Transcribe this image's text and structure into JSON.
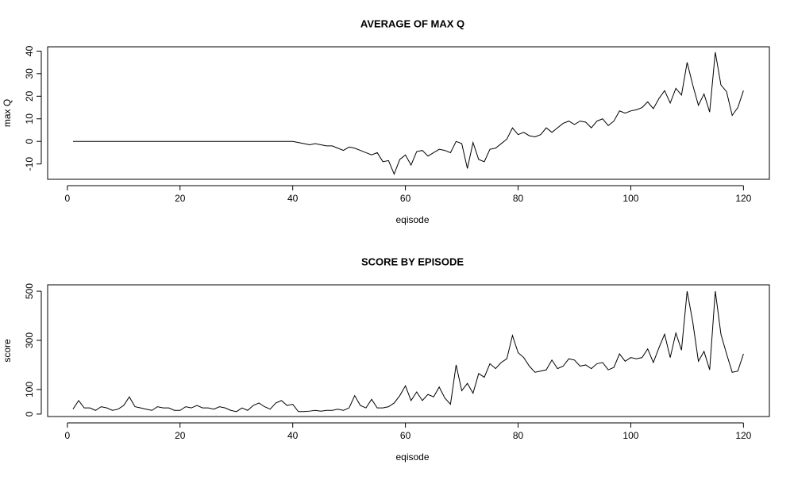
{
  "chart_data": [
    {
      "type": "line",
      "title": "AVERAGE OF MAX Q",
      "x_label": "eqisode",
      "y_label": "max Q",
      "x": [
        1,
        2,
        3,
        4,
        5,
        6,
        7,
        8,
        9,
        10,
        11,
        12,
        13,
        14,
        15,
        16,
        17,
        18,
        19,
        20,
        21,
        22,
        23,
        24,
        25,
        26,
        27,
        28,
        29,
        30,
        31,
        32,
        33,
        34,
        35,
        36,
        37,
        38,
        39,
        40,
        41,
        42,
        43,
        44,
        45,
        46,
        47,
        48,
        49,
        50,
        51,
        52,
        53,
        54,
        55,
        56,
        57,
        58,
        59,
        60,
        61,
        62,
        63,
        64,
        65,
        66,
        67,
        68,
        69,
        70,
        71,
        72,
        73,
        74,
        75,
        76,
        77,
        78,
        79,
        80,
        81,
        82,
        83,
        84,
        85,
        86,
        87,
        88,
        89,
        90,
        91,
        92,
        93,
        94,
        95,
        96,
        97,
        98,
        99,
        100,
        101,
        102,
        103,
        104,
        105,
        106,
        107,
        108,
        109,
        110,
        111,
        112,
        113,
        114,
        115,
        116,
        117,
        118,
        119,
        120
      ],
      "series": [
        {
          "color": "#000000",
          "values": [
            0,
            0,
            0,
            0,
            0,
            0,
            0,
            0,
            0,
            0,
            0,
            0,
            0,
            0,
            0,
            0,
            0,
            0,
            0,
            0,
            0,
            0,
            0,
            0,
            0,
            0,
            0,
            0,
            0,
            0,
            0,
            0,
            0,
            0,
            0,
            0,
            0,
            0,
            0,
            0,
            -0.5,
            -1,
            -1.5,
            -1,
            -1.5,
            -2,
            -2,
            -3,
            -4,
            -2.5,
            -3,
            -4,
            -5,
            -6,
            -5,
            -9,
            -8.5,
            -14.5,
            -8,
            -6,
            -10.5,
            -4.5,
            -4,
            -6.5,
            -5,
            -3.5,
            -4,
            -5,
            0,
            -1,
            -12,
            -0.5,
            -8,
            -9,
            -3.5,
            -3,
            -1,
            1,
            6,
            3,
            4,
            2.5,
            2,
            3,
            6,
            4,
            6,
            8,
            9,
            7.5,
            9,
            8.5,
            6,
            9,
            10,
            7,
            9,
            13.5,
            12.5,
            13.5,
            14,
            15,
            17.5,
            14.5,
            19,
            22.5,
            17,
            23.5,
            20.5,
            35,
            25,
            16,
            21,
            13,
            39.5,
            25,
            22,
            11.5,
            15,
            22.5
          ]
        }
      ],
      "xlim": [
        -3.5,
        124.6
      ],
      "xticks": [
        0,
        20,
        40,
        60,
        80,
        100,
        120
      ],
      "ylim": [
        -16.8,
        41.9
      ],
      "yticks": [
        -10,
        0,
        10,
        20,
        30,
        40
      ]
    },
    {
      "type": "line",
      "title": "SCORE BY EPISODE",
      "x_label": "eqisode",
      "y_label": "score",
      "x": [
        1,
        2,
        3,
        4,
        5,
        6,
        7,
        8,
        9,
        10,
        11,
        12,
        13,
        14,
        15,
        16,
        17,
        18,
        19,
        20,
        21,
        22,
        23,
        24,
        25,
        26,
        27,
        28,
        29,
        30,
        31,
        32,
        33,
        34,
        35,
        36,
        37,
        38,
        39,
        40,
        41,
        42,
        43,
        44,
        45,
        46,
        47,
        48,
        49,
        50,
        51,
        52,
        53,
        54,
        55,
        56,
        57,
        58,
        59,
        60,
        61,
        62,
        63,
        64,
        65,
        66,
        67,
        68,
        69,
        70,
        71,
        72,
        73,
        74,
        75,
        76,
        77,
        78,
        79,
        80,
        81,
        82,
        83,
        84,
        85,
        86,
        87,
        88,
        89,
        90,
        91,
        92,
        93,
        94,
        95,
        96,
        97,
        98,
        99,
        100,
        101,
        102,
        103,
        104,
        105,
        106,
        107,
        108,
        109,
        110,
        111,
        112,
        113,
        114,
        115,
        116,
        117,
        118,
        119,
        120
      ],
      "series": [
        {
          "color": "#000000",
          "values": [
            20,
            55,
            25,
            25,
            15,
            30,
            25,
            15,
            20,
            35,
            70,
            30,
            25,
            20,
            15,
            30,
            25,
            25,
            15,
            15,
            30,
            25,
            35,
            25,
            25,
            20,
            30,
            25,
            15,
            10,
            25,
            15,
            35,
            45,
            30,
            20,
            45,
            55,
            35,
            40,
            10,
            10,
            12,
            15,
            12,
            15,
            15,
            20,
            15,
            25,
            75,
            35,
            25,
            60,
            25,
            25,
            30,
            45,
            75,
            115,
            55,
            90,
            55,
            80,
            70,
            110,
            65,
            40,
            200,
            95,
            125,
            85,
            165,
            150,
            205,
            185,
            210,
            225,
            320,
            250,
            230,
            195,
            170,
            175,
            180,
            220,
            185,
            195,
            225,
            220,
            195,
            200,
            185,
            205,
            210,
            180,
            190,
            245,
            215,
            230,
            225,
            230,
            265,
            210,
            270,
            325,
            230,
            330,
            260,
            500,
            375,
            215,
            255,
            180,
            500,
            325,
            245,
            170,
            175,
            245
          ]
        }
      ],
      "xlim": [
        -3.5,
        124.6
      ],
      "xticks": [
        0,
        20,
        40,
        60,
        80,
        100,
        120
      ],
      "ylim": [
        -10,
        526
      ],
      "yticks": [
        0,
        100,
        300,
        500
      ]
    }
  ]
}
